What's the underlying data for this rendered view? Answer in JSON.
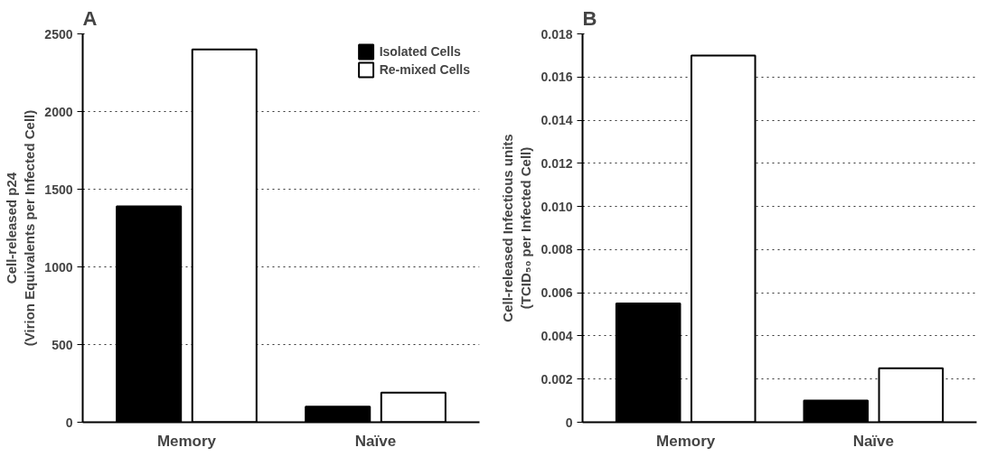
{
  "chart_data": [
    {
      "type": "bar",
      "title": "A",
      "ylabel": "Cell-released p24\n(Virion Equivalents per Infected Cell)",
      "categories": [
        "Memory",
        "Naïve"
      ],
      "series": [
        {
          "name": "Isolated Cells",
          "color": "#000000",
          "values": [
            1390,
            100
          ]
        },
        {
          "name": "Re-mixed Cells",
          "color": "#ffffff",
          "values": [
            2400,
            190
          ]
        }
      ],
      "ylim": [
        0,
        2500
      ],
      "yticks": [
        0,
        500,
        1000,
        1500,
        2000,
        2500
      ],
      "grid": "y",
      "legend": "top right"
    },
    {
      "type": "bar",
      "title": "B",
      "ylabel": "Cell-released Infectious units\n(TCID₅₀ per Infected Cell)",
      "categories": [
        "Memory",
        "Naïve"
      ],
      "series": [
        {
          "color": "#000000",
          "values": [
            0.0055,
            0.001
          ]
        },
        {
          "color": "#ffffff",
          "values": [
            0.017,
            0.0025
          ]
        }
      ],
      "ylim": [
        0,
        0.018
      ],
      "yticks": [
        0,
        0.002,
        0.004,
        0.006,
        0.008,
        {
          "value": 0.01,
          "label": "0.010"
        },
        0.012,
        0.014,
        0.016,
        0.018
      ],
      "grid": "y"
    }
  ]
}
